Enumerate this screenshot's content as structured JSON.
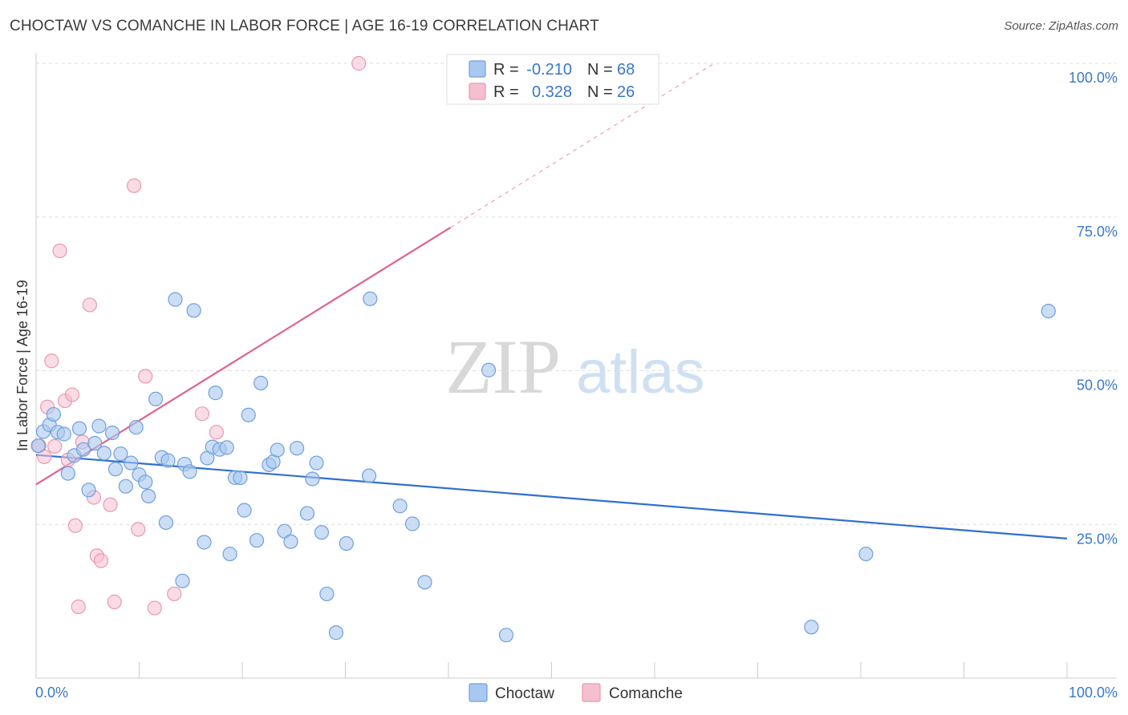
{
  "title": "CHOCTAW VS COMANCHE IN LABOR FORCE | AGE 16-19 CORRELATION CHART",
  "source": "Source: ZipAtlas.com",
  "watermark": {
    "zip": "ZIP",
    "atlas": "atlas"
  },
  "colors": {
    "choctaw_fill": "#a9c8ef",
    "choctaw_stroke": "#6fa0dc",
    "choctaw_line": "#2f6fcf",
    "comanche_fill": "#f6bfd0",
    "comanche_stroke": "#eb97b2",
    "comanche_line": "#e0628e",
    "grid": "#dddddd",
    "tick_text": "#3b78c8"
  },
  "legend": {
    "rows": [
      {
        "r_label": "R =",
        "r_value": "-0.210",
        "n_label": "N =",
        "n_value": "68"
      },
      {
        "r_label": "R =",
        "r_value": "0.328",
        "n_label": "N =",
        "n_value": "26"
      }
    ]
  },
  "chart_data": {
    "type": "scatter",
    "title": "CHOCTAW VS COMANCHE IN LABOR FORCE | AGE 16-19 CORRELATION CHART",
    "xlabel": "",
    "ylabel": "In Labor Force | Age 16-19",
    "xlim": [
      0,
      100
    ],
    "ylim": [
      0,
      100
    ],
    "x_tick_labels": [
      "0.0%",
      "100.0%"
    ],
    "y_ticks": [
      25,
      50,
      75,
      100
    ],
    "y_tick_labels": [
      "25.0%",
      "50.0%",
      "75.0%",
      "100.0%"
    ],
    "grid": true,
    "legend_position": "bottom",
    "series": [
      {
        "name": "Choctaw",
        "r": -0.21,
        "n": 68,
        "trend": {
          "x0": 0,
          "y0": 36.3,
          "x1": 100,
          "y1": 22.7
        },
        "points": [
          [
            0.7,
            40.1
          ],
          [
            1.3,
            41.2
          ],
          [
            1.7,
            42.9
          ],
          [
            2.1,
            40.0
          ],
          [
            2.7,
            39.7
          ],
          [
            3.1,
            33.3
          ],
          [
            3.7,
            36.2
          ],
          [
            4.2,
            40.6
          ],
          [
            4.6,
            37.2
          ],
          [
            5.1,
            30.6
          ],
          [
            5.7,
            38.2
          ],
          [
            6.1,
            41.0
          ],
          [
            6.6,
            36.6
          ],
          [
            7.4,
            39.9
          ],
          [
            7.7,
            34.0
          ],
          [
            8.2,
            36.5
          ],
          [
            8.7,
            31.2
          ],
          [
            9.2,
            35.0
          ],
          [
            9.7,
            40.8
          ],
          [
            10.0,
            33.1
          ],
          [
            10.6,
            31.9
          ],
          [
            10.9,
            29.6
          ],
          [
            11.6,
            45.4
          ],
          [
            12.2,
            35.9
          ],
          [
            12.6,
            25.3
          ],
          [
            12.8,
            35.4
          ],
          [
            13.5,
            61.6
          ],
          [
            14.2,
            15.8
          ],
          [
            14.4,
            34.8
          ],
          [
            14.9,
            33.6
          ],
          [
            15.3,
            59.8
          ],
          [
            16.3,
            22.1
          ],
          [
            16.6,
            35.8
          ],
          [
            17.1,
            37.6
          ],
          [
            17.4,
            46.4
          ],
          [
            17.8,
            37.2
          ],
          [
            18.5,
            37.5
          ],
          [
            18.8,
            20.2
          ],
          [
            19.3,
            32.6
          ],
          [
            19.8,
            32.6
          ],
          [
            20.2,
            27.3
          ],
          [
            20.6,
            42.8
          ],
          [
            21.4,
            22.4
          ],
          [
            21.8,
            48.0
          ],
          [
            22.6,
            34.7
          ],
          [
            23.0,
            35.2
          ],
          [
            23.4,
            37.1
          ],
          [
            24.1,
            23.9
          ],
          [
            24.7,
            22.2
          ],
          [
            25.3,
            37.4
          ],
          [
            26.3,
            26.8
          ],
          [
            26.8,
            32.4
          ],
          [
            27.2,
            35.0
          ],
          [
            27.7,
            23.7
          ],
          [
            28.2,
            13.7
          ],
          [
            29.1,
            7.4
          ],
          [
            30.1,
            21.9
          ],
          [
            32.3,
            32.9
          ],
          [
            32.4,
            61.7
          ],
          [
            35.3,
            28.0
          ],
          [
            36.5,
            25.1
          ],
          [
            37.7,
            15.6
          ],
          [
            43.9,
            50.1
          ],
          [
            45.6,
            7.0
          ],
          [
            75.2,
            8.3
          ],
          [
            80.5,
            20.2
          ],
          [
            98.2,
            59.7
          ],
          [
            0.2,
            37.8
          ]
        ]
      },
      {
        "name": "Comanche",
        "r": 0.328,
        "n": 26,
        "trend": {
          "x0": 0,
          "y0": 31.5,
          "x1": 40.2,
          "y1": 73.3,
          "dash_to_x": 65.6,
          "dash_to_y": 99.8
        },
        "points": [
          [
            0.3,
            37.8
          ],
          [
            0.8,
            36.0
          ],
          [
            1.1,
            44.1
          ],
          [
            1.5,
            51.6
          ],
          [
            1.8,
            37.7
          ],
          [
            2.3,
            69.5
          ],
          [
            2.8,
            45.1
          ],
          [
            3.1,
            35.5
          ],
          [
            3.5,
            46.1
          ],
          [
            3.8,
            24.8
          ],
          [
            4.1,
            11.6
          ],
          [
            4.5,
            38.4
          ],
          [
            5.2,
            60.7
          ],
          [
            5.6,
            29.4
          ],
          [
            5.9,
            19.9
          ],
          [
            6.3,
            19.1
          ],
          [
            7.2,
            28.2
          ],
          [
            7.6,
            12.4
          ],
          [
            9.5,
            80.1
          ],
          [
            9.9,
            24.2
          ],
          [
            10.6,
            49.1
          ],
          [
            11.5,
            11.4
          ],
          [
            13.4,
            13.7
          ],
          [
            16.1,
            43.0
          ],
          [
            17.5,
            40.0
          ],
          [
            31.3,
            100.0
          ]
        ]
      }
    ]
  }
}
